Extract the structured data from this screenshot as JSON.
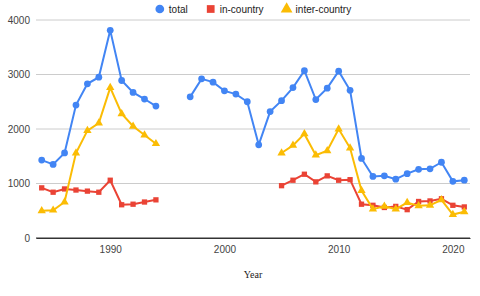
{
  "chart_data": {
    "type": "line",
    "x_label": "Year",
    "x": [
      1984,
      1985,
      1986,
      1987,
      1988,
      1989,
      1990,
      1991,
      1992,
      1993,
      1994,
      1995,
      1996,
      1997,
      1998,
      1999,
      2000,
      2001,
      2002,
      2003,
      2004,
      2005,
      2006,
      2007,
      2008,
      2009,
      2010,
      2011,
      2012,
      2013,
      2014,
      2015,
      2016,
      2017,
      2018,
      2019,
      2020,
      2021
    ],
    "xlim": [
      1983.5,
      2021.5
    ],
    "xticks": [
      1990,
      2000,
      2010,
      2020
    ],
    "ylim": [
      0,
      4000
    ],
    "yticks": [
      0,
      1000,
      2000,
      3000,
      4000
    ],
    "grid": true,
    "legend": "top",
    "series": [
      {
        "name": "total",
        "color": "#4285f4",
        "marker": "circle",
        "values": [
          1430,
          1350,
          1560,
          2440,
          2830,
          2950,
          3810,
          2890,
          2670,
          2550,
          2420,
          null,
          null,
          2590,
          2920,
          2860,
          2700,
          2640,
          2500,
          1710,
          2320,
          2520,
          2760,
          3070,
          2540,
          2750,
          3060,
          2710,
          1460,
          1130,
          1140,
          1080,
          1180,
          1260,
          1270,
          1390,
          1040,
          1060
        ]
      },
      {
        "name": "in-country",
        "color": "#ea4335",
        "marker": "square",
        "values": [
          920,
          840,
          900,
          880,
          860,
          840,
          1060,
          610,
          620,
          660,
          700,
          null,
          null,
          null,
          null,
          null,
          null,
          null,
          null,
          null,
          null,
          960,
          1060,
          1170,
          1030,
          1140,
          1060,
          1070,
          620,
          600,
          560,
          580,
          520,
          670,
          680,
          720,
          600,
          570
        ]
      },
      {
        "name": "inter-country",
        "color": "#fbbc04",
        "marker": "triangle",
        "values": [
          500,
          510,
          660,
          1560,
          1970,
          2110,
          2760,
          2280,
          2050,
          1890,
          1730,
          null,
          null,
          null,
          null,
          null,
          null,
          null,
          null,
          null,
          null,
          1560,
          1700,
          1910,
          1520,
          1600,
          2000,
          1650,
          870,
          530,
          580,
          530,
          650,
          590,
          600,
          700,
          430,
          480
        ]
      }
    ]
  }
}
